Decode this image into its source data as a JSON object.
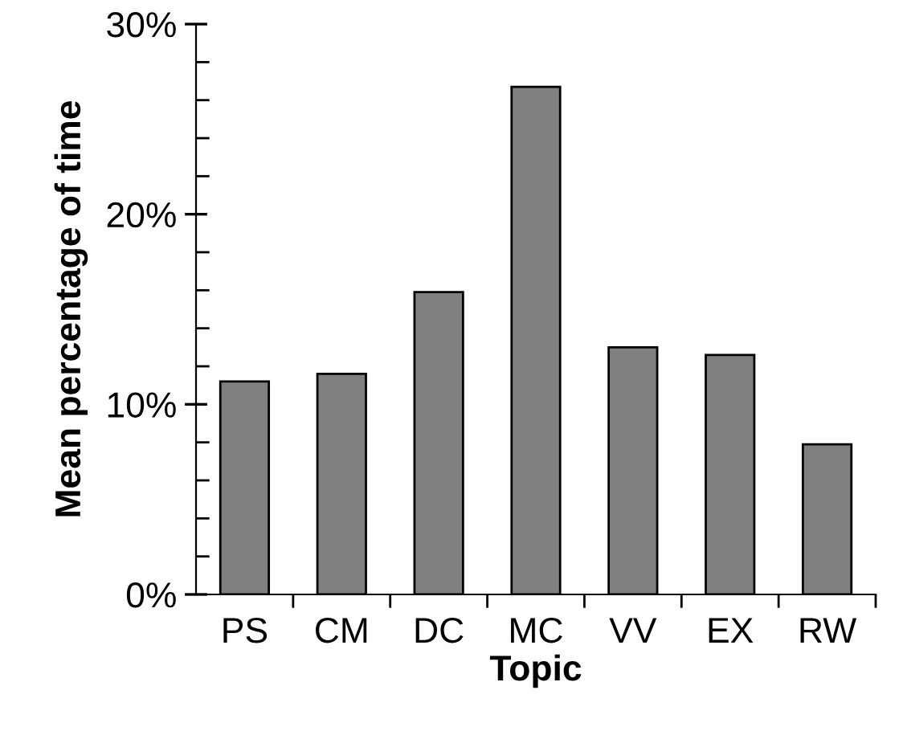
{
  "chart_data": {
    "type": "bar",
    "xlabel": "Topic",
    "ylabel": "Mean percentage of time",
    "categories": [
      "PS",
      "CM",
      "DC",
      "MC",
      "VV",
      "EX",
      "RW"
    ],
    "values": [
      11.2,
      11.6,
      15.9,
      26.7,
      13.0,
      12.6,
      7.9
    ],
    "color": "#808080",
    "ylim": [
      0,
      30
    ],
    "yticks": [
      {
        "value": 0,
        "label": "0%"
      },
      {
        "value": 2,
        "label": null
      },
      {
        "value": 4,
        "label": null
      },
      {
        "value": 6,
        "label": null
      },
      {
        "value": 8,
        "label": null
      },
      {
        "value": 10,
        "label": "10%"
      },
      {
        "value": 12,
        "label": null
      },
      {
        "value": 14,
        "label": null
      },
      {
        "value": 16,
        "label": null
      },
      {
        "value": 18,
        "label": null
      },
      {
        "value": 20,
        "label": "20%"
      },
      {
        "value": 22,
        "label": null
      },
      {
        "value": 24,
        "label": null
      },
      {
        "value": 26,
        "label": null
      },
      {
        "value": 28,
        "label": null
      },
      {
        "value": 30,
        "label": "30%"
      }
    ],
    "grid": false,
    "legend": false
  }
}
